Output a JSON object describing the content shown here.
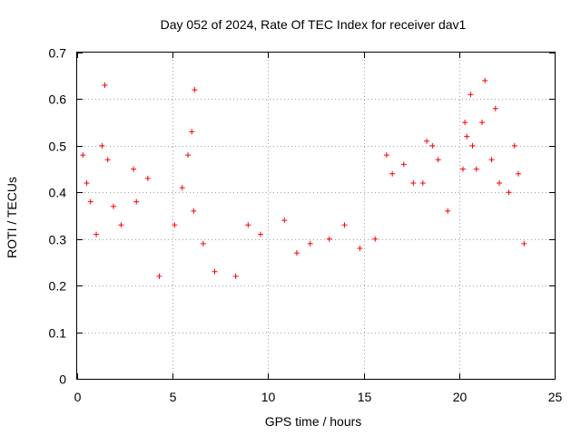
{
  "chart_data": {
    "type": "scatter",
    "title": "Day 052 of 2024, Rate Of TEC Index for receiver dav1",
    "xlabel": "GPS time / hours",
    "ylabel": "ROTI / TECUs",
    "xlim": [
      0,
      25
    ],
    "ylim": [
      0,
      0.7
    ],
    "x_ticks": [
      "0",
      "5",
      "10",
      "15",
      "20",
      "25"
    ],
    "y_ticks": [
      "0",
      "0.1",
      "0.2",
      "0.3",
      "0.4",
      "0.5",
      "0.6",
      "0.7"
    ],
    "grid": true,
    "marker": "+",
    "color": "#ff0000",
    "series": [
      {
        "points": [
          [
            0.3,
            0.48
          ],
          [
            0.5,
            0.42
          ],
          [
            0.7,
            0.38
          ],
          [
            1.0,
            0.31
          ],
          [
            1.3,
            0.5
          ],
          [
            1.45,
            0.63
          ],
          [
            1.6,
            0.47
          ],
          [
            1.9,
            0.37
          ],
          [
            2.3,
            0.33
          ],
          [
            2.95,
            0.45
          ],
          [
            3.1,
            0.38
          ],
          [
            3.7,
            0.43
          ],
          [
            4.3,
            0.22
          ],
          [
            5.1,
            0.33
          ],
          [
            5.5,
            0.41
          ],
          [
            5.8,
            0.48
          ],
          [
            6.0,
            0.53
          ],
          [
            6.15,
            0.62
          ],
          [
            6.1,
            0.36
          ],
          [
            6.6,
            0.29
          ],
          [
            7.2,
            0.23
          ],
          [
            8.3,
            0.22
          ],
          [
            8.95,
            0.33
          ],
          [
            9.6,
            0.31
          ],
          [
            10.85,
            0.34
          ],
          [
            11.5,
            0.27
          ],
          [
            12.2,
            0.29
          ],
          [
            13.2,
            0.3
          ],
          [
            14.0,
            0.33
          ],
          [
            14.8,
            0.28
          ],
          [
            15.6,
            0.3
          ],
          [
            16.2,
            0.48
          ],
          [
            16.5,
            0.44
          ],
          [
            17.1,
            0.46
          ],
          [
            17.6,
            0.42
          ],
          [
            18.1,
            0.42
          ],
          [
            18.3,
            0.51
          ],
          [
            18.6,
            0.5
          ],
          [
            18.9,
            0.47
          ],
          [
            19.4,
            0.36
          ],
          [
            20.2,
            0.45
          ],
          [
            20.3,
            0.55
          ],
          [
            20.4,
            0.52
          ],
          [
            20.6,
            0.61
          ],
          [
            20.7,
            0.5
          ],
          [
            20.9,
            0.45
          ],
          [
            21.2,
            0.55
          ],
          [
            21.35,
            0.64
          ],
          [
            21.7,
            0.47
          ],
          [
            21.9,
            0.58
          ],
          [
            22.1,
            0.42
          ],
          [
            22.6,
            0.4
          ],
          [
            22.9,
            0.5
          ],
          [
            23.1,
            0.44
          ],
          [
            23.4,
            0.29
          ]
        ]
      }
    ]
  }
}
